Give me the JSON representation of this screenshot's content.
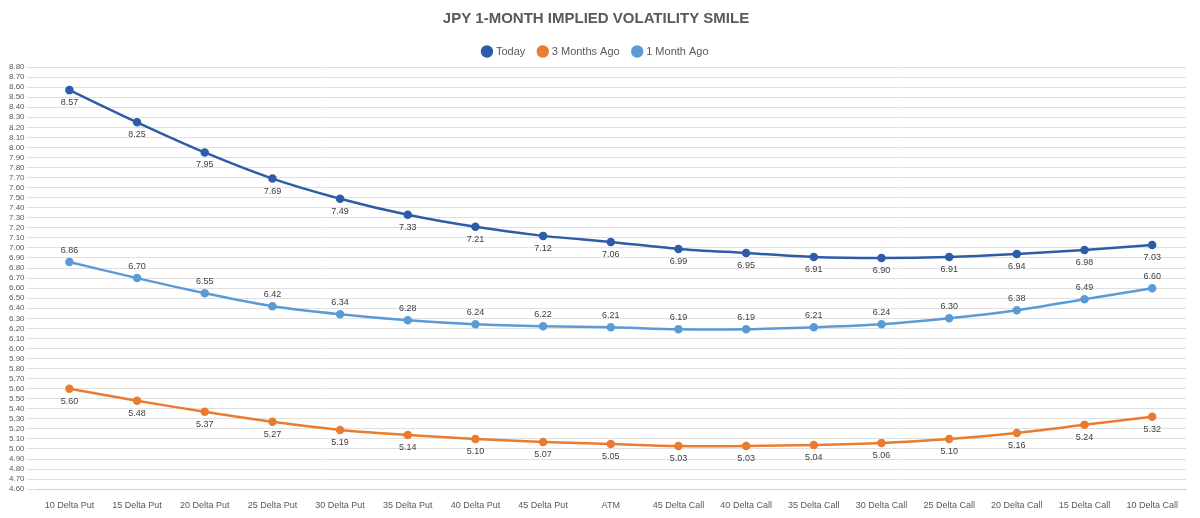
{
  "chart_data": {
    "type": "line",
    "title": "JPY 1-MONTH IMPLIED VOLATILITY SMILE",
    "categories": [
      "10 Delta Put",
      "15 Delta Put",
      "20 Delta Put",
      "25 Delta Put",
      "30 Delta Put",
      "35 Delta Put",
      "40 Delta Put",
      "45 Delta Put",
      "ATM",
      "45 Delta Call",
      "40 Delta Call",
      "35 Delta Call",
      "30 Delta Call",
      "25 Delta Call",
      "20 Delta Call",
      "15 Delta Call",
      "10 Delta Call"
    ],
    "series": [
      {
        "name": "Today",
        "color": "#2e5ca8",
        "marker": "circle",
        "line_style": "solid",
        "values": [
          8.57,
          8.25,
          7.95,
          7.69,
          7.49,
          7.33,
          7.21,
          7.12,
          7.06,
          6.99,
          6.95,
          6.91,
          6.9,
          6.91,
          6.94,
          6.98,
          7.03
        ],
        "value_labels": [
          "8.57",
          "8.25",
          "7.95",
          "7.69",
          "7.49",
          "7.33",
          "7.21",
          "7.12",
          "7.06",
          "6.99",
          "6.95",
          "6.91",
          "6.90",
          "6.91",
          "6.94",
          "6.98",
          "7.03"
        ]
      },
      {
        "name": "3 Months Ago",
        "color": "#e97c30",
        "marker": "circle",
        "line_style": "solid",
        "values": [
          5.6,
          5.48,
          5.37,
          5.27,
          5.19,
          5.14,
          5.1,
          5.07,
          5.05,
          5.03,
          5.03,
          5.04,
          5.06,
          5.1,
          5.16,
          5.24,
          5.32
        ],
        "value_labels": [
          "5.60",
          "5.48",
          "5.37",
          "5.27",
          "5.19",
          "5.14",
          "5.10",
          "5.07",
          "5.05",
          "5.03",
          "5.03",
          "5.04",
          "5.06",
          "5.10",
          "5.16",
          "5.24",
          "5.32"
        ]
      },
      {
        "name": "1 Month Ago",
        "color": "#5b9bd5",
        "marker": "circle",
        "line_style": "solid",
        "values": [
          6.86,
          6.7,
          6.55,
          6.42,
          6.34,
          6.28,
          6.24,
          6.22,
          6.21,
          6.19,
          6.19,
          6.21,
          6.24,
          6.3,
          6.38,
          6.49,
          6.6
        ],
        "value_labels": [
          "6.86",
          "6.70",
          "6.55",
          "6.42",
          "6.34",
          "6.28",
          "6.24",
          "6.22",
          "6.21",
          "6.19",
          "6.19",
          "6.21",
          "6.24",
          "6.30",
          "6.38",
          "6.49",
          "6.60"
        ]
      }
    ],
    "ylim": [
      4.6,
      8.8
    ],
    "yticks": [
      {
        "value": 4.6,
        "label": "4.60"
      },
      {
        "value": 4.7,
        "label": "4.70"
      },
      {
        "value": 4.8,
        "label": "4.80"
      },
      {
        "value": 4.9,
        "label": "4.90"
      },
      {
        "value": 5.0,
        "label": "5.00"
      },
      {
        "value": 5.1,
        "label": "5.10"
      },
      {
        "value": 5.2,
        "label": "5.20"
      },
      {
        "value": 5.3,
        "label": "5.30"
      },
      {
        "value": 5.4,
        "label": "5.40"
      },
      {
        "value": 5.5,
        "label": "5.50"
      },
      {
        "value": 5.6,
        "label": "5.60"
      },
      {
        "value": 5.7,
        "label": "5.70"
      },
      {
        "value": 5.8,
        "label": "5.80"
      },
      {
        "value": 5.9,
        "label": "5.90"
      },
      {
        "value": 6.0,
        "label": "6.00"
      },
      {
        "value": 6.1,
        "label": "6.10"
      },
      {
        "value": 6.2,
        "label": "6.20"
      },
      {
        "value": 6.3,
        "label": "6.30"
      },
      {
        "value": 6.4,
        "label": "6.40"
      },
      {
        "value": 6.5,
        "label": "6.50"
      },
      {
        "value": 6.6,
        "label": "6.60"
      },
      {
        "value": 6.7,
        "label": "6.70"
      },
      {
        "value": 6.8,
        "label": "6.80"
      },
      {
        "value": 6.9,
        "label": "6.90"
      },
      {
        "value": 7.0,
        "label": "7.00"
      },
      {
        "value": 7.1,
        "label": "7.10"
      },
      {
        "value": 7.2,
        "label": "7.20"
      },
      {
        "value": 7.3,
        "label": "7.30"
      },
      {
        "value": 7.4,
        "label": "7.40"
      },
      {
        "value": 7.5,
        "label": "7.50"
      },
      {
        "value": 7.6,
        "label": "7.60"
      },
      {
        "value": 7.7,
        "label": "7.70"
      },
      {
        "value": 7.8,
        "label": "7.80"
      },
      {
        "value": 7.9,
        "label": "7.90"
      },
      {
        "value": 8.0,
        "label": "8.00"
      },
      {
        "value": 8.1,
        "label": "8.10"
      },
      {
        "value": 8.2,
        "label": "8.20"
      },
      {
        "value": 8.3,
        "label": "8.30"
      },
      {
        "value": 8.4,
        "label": "8.40"
      },
      {
        "value": 8.5,
        "label": "8.50"
      },
      {
        "value": 8.6,
        "label": "8.60"
      },
      {
        "value": 8.7,
        "label": "8.70"
      },
      {
        "value": 8.8,
        "label": "8.80"
      }
    ],
    "grid": true,
    "legend": "top",
    "data_labels": true
  }
}
